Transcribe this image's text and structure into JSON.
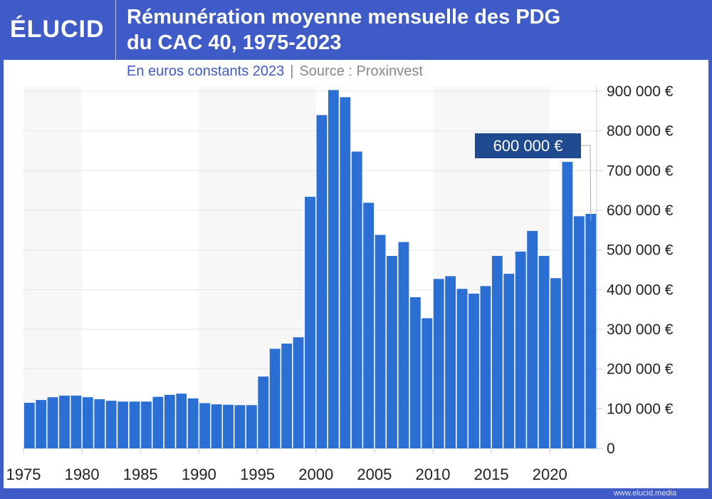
{
  "header": {
    "logo": "ÉLUCID",
    "title_line1": "Rémunération moyenne mensuelle des PDG",
    "title_line2": "du CAC 40, 1975-2023",
    "subtitle": "En euros constants 2023",
    "separator": "|",
    "source": "Source : Proxinvest"
  },
  "footer": {
    "url": "www.elucid.media"
  },
  "colors": {
    "frame": "#3f5bc7",
    "bar": "#2b6fd4",
    "annotation": "#1f4a8f",
    "band": "#f7f7f7"
  },
  "chart_data": {
    "type": "bar",
    "title": "Rémunération moyenne mensuelle des PDG du CAC 40, 1975-2023",
    "subtitle": "En euros constants 2023",
    "xlabel": "",
    "ylabel": "",
    "ylim": [
      0,
      900000
    ],
    "y_ticks": [
      0,
      100000,
      200000,
      300000,
      400000,
      500000,
      600000,
      700000,
      800000,
      900000
    ],
    "y_tick_labels": [
      "0",
      "100 000 €",
      "200 000 €",
      "300 000 €",
      "400 000 €",
      "500 000 €",
      "600 000 €",
      "700 000 €",
      "800 000 €",
      "900 000 €"
    ],
    "y_axis_side": "right",
    "x_tick_labels": [
      "1975",
      "1980",
      "1985",
      "1990",
      "1995",
      "2000",
      "2005",
      "2010",
      "2015",
      "2020"
    ],
    "grid": true,
    "shaded_bands": [
      [
        1975,
        1980
      ],
      [
        1990,
        2000
      ],
      [
        2010,
        2020
      ]
    ],
    "categories": [
      1975,
      1976,
      1977,
      1978,
      1979,
      1980,
      1981,
      1982,
      1983,
      1984,
      1985,
      1986,
      1987,
      1988,
      1989,
      1990,
      1991,
      1992,
      1993,
      1994,
      1995,
      1996,
      1997,
      1998,
      1999,
      2000,
      2001,
      2002,
      2003,
      2004,
      2005,
      2006,
      2007,
      2008,
      2009,
      2010,
      2011,
      2012,
      2013,
      2014,
      2015,
      2016,
      2017,
      2018,
      2019,
      2020,
      2021,
      2022,
      2023
    ],
    "values": [
      115000,
      122000,
      129000,
      133000,
      133000,
      129000,
      124000,
      120000,
      118000,
      118000,
      118000,
      130000,
      135000,
      138000,
      126000,
      114000,
      111000,
      110000,
      109000,
      109000,
      181000,
      251000,
      264000,
      280000,
      634000,
      840000,
      903000,
      885000,
      748000,
      619000,
      538000,
      485000,
      520000,
      381000,
      328000,
      427000,
      434000,
      402000,
      390000,
      409000,
      485000,
      440000,
      496000,
      548000,
      485000,
      429000,
      722000,
      585000,
      591000
    ],
    "annotation": {
      "text": "600 000 €",
      "year": 2023
    }
  }
}
